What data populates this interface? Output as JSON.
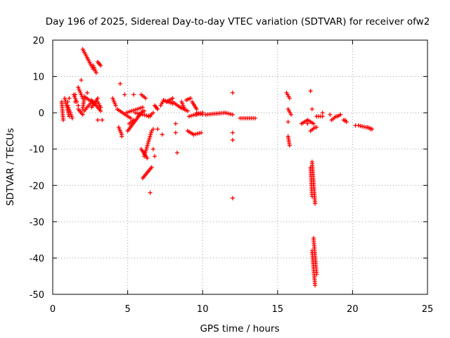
{
  "chart_data": {
    "type": "scatter",
    "title": "Day 196 of 2025, Sidereal Day-to-day VTEC variation (SDTVAR) for receiver ofw2",
    "xlabel": "GPS time / hours",
    "ylabel": "SDTVAR / TECUs",
    "xlim": [
      0,
      25
    ],
    "ylim": [
      -50,
      20
    ],
    "xticks": [
      0,
      5,
      10,
      15,
      20,
      25
    ],
    "yticks": [
      -50,
      -40,
      -30,
      -20,
      -10,
      0,
      10,
      20
    ],
    "grid": true,
    "marker": "+",
    "color": "#ff0000",
    "segments": [
      [
        0.6,
        0.7,
        3.0,
        -2.0
      ],
      [
        0.8,
        1.1,
        4.0,
        -1.0
      ],
      [
        1.0,
        1.3,
        2.0,
        -1.5
      ],
      [
        1.4,
        1.6,
        5.0,
        3.0
      ],
      [
        1.7,
        2.0,
        7.0,
        4.0
      ],
      [
        1.7,
        2.0,
        1.0,
        -0.5
      ],
      [
        2.0,
        2.1,
        1.0,
        4.0
      ],
      [
        2.1,
        2.6,
        4.5,
        3.0
      ],
      [
        2.6,
        3.2,
        3.5,
        0.5
      ],
      [
        3.0,
        3.2,
        3.0,
        1.5
      ],
      [
        2.0,
        2.7,
        17.5,
        12.0
      ],
      [
        2.7,
        2.9,
        13.0,
        11.0
      ],
      [
        3.0,
        3.2,
        14.0,
        13.0
      ],
      [
        2.1,
        2.6,
        0.5,
        3.0
      ],
      [
        2.6,
        3.0,
        1.5,
        4.0
      ],
      [
        4.0,
        4.2,
        4.0,
        2.0
      ],
      [
        4.4,
        4.6,
        -4.0,
        -6.0
      ],
      [
        4.3,
        5.2,
        1.0,
        -1.5
      ],
      [
        4.9,
        6.0,
        0.0,
        1.5
      ],
      [
        5.0,
        6.0,
        -5.0,
        0.5
      ],
      [
        5.1,
        5.4,
        -3.0,
        -2.0
      ],
      [
        5.5,
        6.5,
        0.0,
        -1.0
      ],
      [
        5.7,
        6.1,
        -1.0,
        0.5
      ],
      [
        5.9,
        6.2,
        5.0,
        4.0
      ],
      [
        6.1,
        6.6,
        -12.0,
        -5.0
      ],
      [
        5.9,
        6.3,
        -10.0,
        -12.5
      ],
      [
        6.0,
        6.6,
        -18.0,
        -15.0
      ],
      [
        6.4,
        6.7,
        -1.0,
        0.0
      ],
      [
        6.8,
        7.0,
        2.0,
        1.0
      ],
      [
        7.2,
        7.4,
        2.0,
        3.5
      ],
      [
        7.4,
        8.0,
        3.5,
        2.5
      ],
      [
        8.0,
        8.5,
        3.0,
        1.5
      ],
      [
        8.5,
        9.0,
        1.5,
        0.5
      ],
      [
        8.6,
        8.8,
        3.0,
        1.0
      ],
      [
        8.9,
        9.2,
        3.5,
        4.0
      ],
      [
        9.3,
        9.6,
        3.0,
        1.0
      ],
      [
        9.6,
        10.0,
        0.0,
        -0.5
      ],
      [
        9.1,
        9.5,
        -1.0,
        -0.5
      ],
      [
        9.5,
        10.0,
        -0.5,
        0.0
      ],
      [
        9.0,
        9.4,
        -5.0,
        -6.0
      ],
      [
        9.4,
        9.9,
        -6.0,
        -5.5
      ],
      [
        10.2,
        11.5,
        -0.5,
        0.0
      ],
      [
        11.5,
        12.0,
        0.0,
        -0.5
      ],
      [
        12.5,
        13.5,
        -1.5,
        -1.5
      ],
      [
        7.6,
        8.0,
        3.0,
        4.0
      ],
      [
        9.6,
        10.0,
        -0.5,
        0.0
      ],
      [
        15.7,
        15.8,
        -6.5,
        -9.0
      ],
      [
        15.6,
        15.8,
        5.5,
        4.0
      ],
      [
        15.7,
        15.9,
        1.0,
        -0.5
      ],
      [
        16.6,
        17.0,
        -3.0,
        -2.0
      ],
      [
        17.0,
        17.4,
        -2.0,
        -3.0
      ],
      [
        17.2,
        17.5,
        -5.0,
        -4.0
      ],
      [
        17.6,
        18.0,
        -1.0,
        -1.0
      ],
      [
        18.6,
        18.9,
        -2.0,
        -1.0
      ],
      [
        19.0,
        19.2,
        -1.0,
        -0.5
      ],
      [
        19.4,
        19.6,
        -2.0,
        -2.5
      ],
      [
        20.4,
        20.9,
        -3.5,
        -4.0
      ],
      [
        21.0,
        21.3,
        -4.0,
        -4.5
      ],
      [
        17.3,
        17.5,
        -13.5,
        -25.0
      ],
      [
        17.2,
        17.3,
        -15.0,
        -23.0
      ],
      [
        17.4,
        17.6,
        -34.5,
        -44.5
      ],
      [
        17.3,
        17.5,
        -38.0,
        -47.5
      ]
    ],
    "points": [
      [
        1.0,
        3.0
      ],
      [
        1.1,
        4.0
      ],
      [
        1.5,
        3.0
      ],
      [
        1.5,
        5.0
      ],
      [
        1.7,
        2.0
      ],
      [
        1.9,
        9.0
      ],
      [
        2.3,
        5.5
      ],
      [
        3.0,
        -2.0
      ],
      [
        3.3,
        -2.0
      ],
      [
        4.5,
        8.0
      ],
      [
        4.6,
        -6.5
      ],
      [
        4.8,
        5.0
      ],
      [
        5.4,
        5.0
      ],
      [
        6.5,
        -22.0
      ],
      [
        6.7,
        -4.5
      ],
      [
        6.7,
        -10.0
      ],
      [
        6.8,
        -12.0
      ],
      [
        7.0,
        -4.5
      ],
      [
        7.3,
        -6.0
      ],
      [
        8.2,
        -3.0
      ],
      [
        8.2,
        -5.5
      ],
      [
        8.3,
        -11.0
      ],
      [
        12.0,
        5.5
      ],
      [
        12.0,
        -5.5
      ],
      [
        12.0,
        -7.5
      ],
      [
        12.0,
        -23.5
      ],
      [
        15.7,
        -2.5
      ],
      [
        17.0,
        -3.0
      ],
      [
        17.2,
        6.0
      ],
      [
        17.3,
        1.0
      ],
      [
        17.6,
        -4.0
      ],
      [
        18.0,
        0.0
      ],
      [
        18.5,
        -0.5
      ],
      [
        19.5,
        -2.0
      ],
      [
        20.2,
        -3.5
      ],
      [
        21.2,
        -4.5
      ]
    ]
  }
}
